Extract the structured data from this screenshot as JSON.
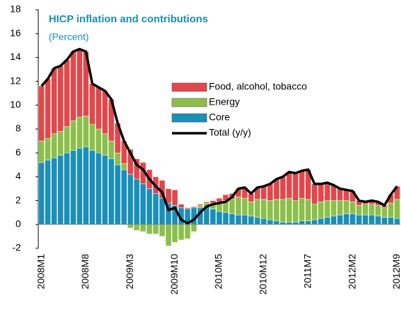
{
  "chart_data": {
    "type": "bar",
    "stacked": true,
    "title": "HICP inflation and contributions",
    "subtitle": "(Percent)",
    "categories": [
      "2008M1",
      null,
      null,
      null,
      null,
      null,
      null,
      "2008M8",
      null,
      null,
      null,
      null,
      null,
      null,
      "2009M3",
      null,
      null,
      null,
      null,
      null,
      null,
      "2009M10",
      null,
      null,
      null,
      null,
      null,
      null,
      "2010M5",
      null,
      null,
      null,
      null,
      null,
      null,
      "2010M12",
      null,
      null,
      null,
      null,
      null,
      null,
      "2011M7",
      null,
      null,
      null,
      null,
      null,
      null,
      "2012M2",
      null,
      null,
      null,
      null,
      null,
      null,
      "2012M9"
    ],
    "series": [
      {
        "name": "Core",
        "color": "#1a8fb8",
        "values": [
          5.2,
          5.4,
          5.6,
          5.8,
          6.0,
          6.2,
          6.4,
          6.5,
          6.2,
          6.0,
          5.8,
          5.5,
          5.0,
          4.6,
          4.2,
          3.8,
          3.4,
          3.0,
          2.6,
          2.2,
          1.8,
          1.6,
          1.4,
          1.3,
          1.4,
          1.4,
          1.5,
          1.3,
          1.1,
          1.0,
          0.9,
          0.8,
          0.8,
          0.7,
          0.6,
          0.5,
          0.4,
          0.3,
          0.2,
          0.2,
          0.2,
          0.3,
          0.3,
          0.4,
          0.5,
          0.6,
          0.7,
          0.8,
          0.9,
          0.9,
          0.8,
          0.8,
          0.8,
          0.7,
          0.6,
          0.6,
          0.5
        ]
      },
      {
        "name": "Energy",
        "color": "#8bbf4a",
        "values": [
          1.8,
          1.8,
          2.0,
          2.0,
          2.2,
          2.5,
          2.6,
          2.6,
          2.2,
          2.0,
          1.8,
          1.5,
          1.0,
          0.5,
          -0.3,
          -0.5,
          -0.6,
          -0.8,
          -0.8,
          -1.0,
          -1.8,
          -1.5,
          -1.3,
          -1.2,
          -0.6,
          0.2,
          0.3,
          0.5,
          0.8,
          1.0,
          1.2,
          1.5,
          1.4,
          1.2,
          1.5,
          1.6,
          1.6,
          1.8,
          1.9,
          2.0,
          1.8,
          1.9,
          1.8,
          1.3,
          1.4,
          1.4,
          1.3,
          1.2,
          1.1,
          1.0,
          0.8,
          0.9,
          0.9,
          0.9,
          0.8,
          1.2,
          1.6
        ]
      },
      {
        "name": "Food, alcohol, tobacco",
        "color": "#e0484b",
        "values": [
          4.6,
          5.0,
          5.5,
          5.5,
          5.6,
          5.8,
          5.7,
          5.4,
          3.4,
          3.5,
          3.6,
          3.5,
          2.5,
          1.9,
          2.1,
          1.7,
          1.8,
          1.6,
          1.4,
          1.5,
          1.2,
          1.3,
          0.3,
          0.1,
          0.1,
          0.1,
          0.1,
          0.2,
          0.3,
          0.5,
          0.5,
          0.7,
          0.9,
          0.7,
          1.0,
          1.1,
          1.4,
          1.7,
          1.9,
          2.2,
          2.3,
          2.3,
          2.5,
          1.7,
          1.5,
          1.5,
          1.3,
          1.0,
          0.9,
          0.9,
          0.4,
          0.2,
          0.3,
          0.3,
          0.2,
          0.7,
          1.1
        ]
      },
      {
        "name": "Total (y/y)",
        "type": "line",
        "color": "#000000",
        "values": [
          11.6,
          12.2,
          13.1,
          13.3,
          13.8,
          14.5,
          14.7,
          14.5,
          11.8,
          11.5,
          11.2,
          10.5,
          8.5,
          7.0,
          6.0,
          5.0,
          4.6,
          3.8,
          3.2,
          2.7,
          1.2,
          1.4,
          0.4,
          0.1,
          0.4,
          1.0,
          1.5,
          1.7,
          1.8,
          1.9,
          2.3,
          3.0,
          3.1,
          2.6,
          3.1,
          3.2,
          3.4,
          3.8,
          4.0,
          4.4,
          4.3,
          4.5,
          4.6,
          3.4,
          3.4,
          3.5,
          3.3,
          3.0,
          2.9,
          2.8,
          2.0,
          1.9,
          2.0,
          1.9,
          1.6,
          2.5,
          3.2
        ]
      }
    ],
    "legend_order": [
      2,
      1,
      0,
      3
    ],
    "ylim": [
      -2,
      18
    ],
    "yticks": [
      -2,
      0,
      2,
      4,
      6,
      8,
      10,
      12,
      14,
      16,
      18
    ]
  }
}
